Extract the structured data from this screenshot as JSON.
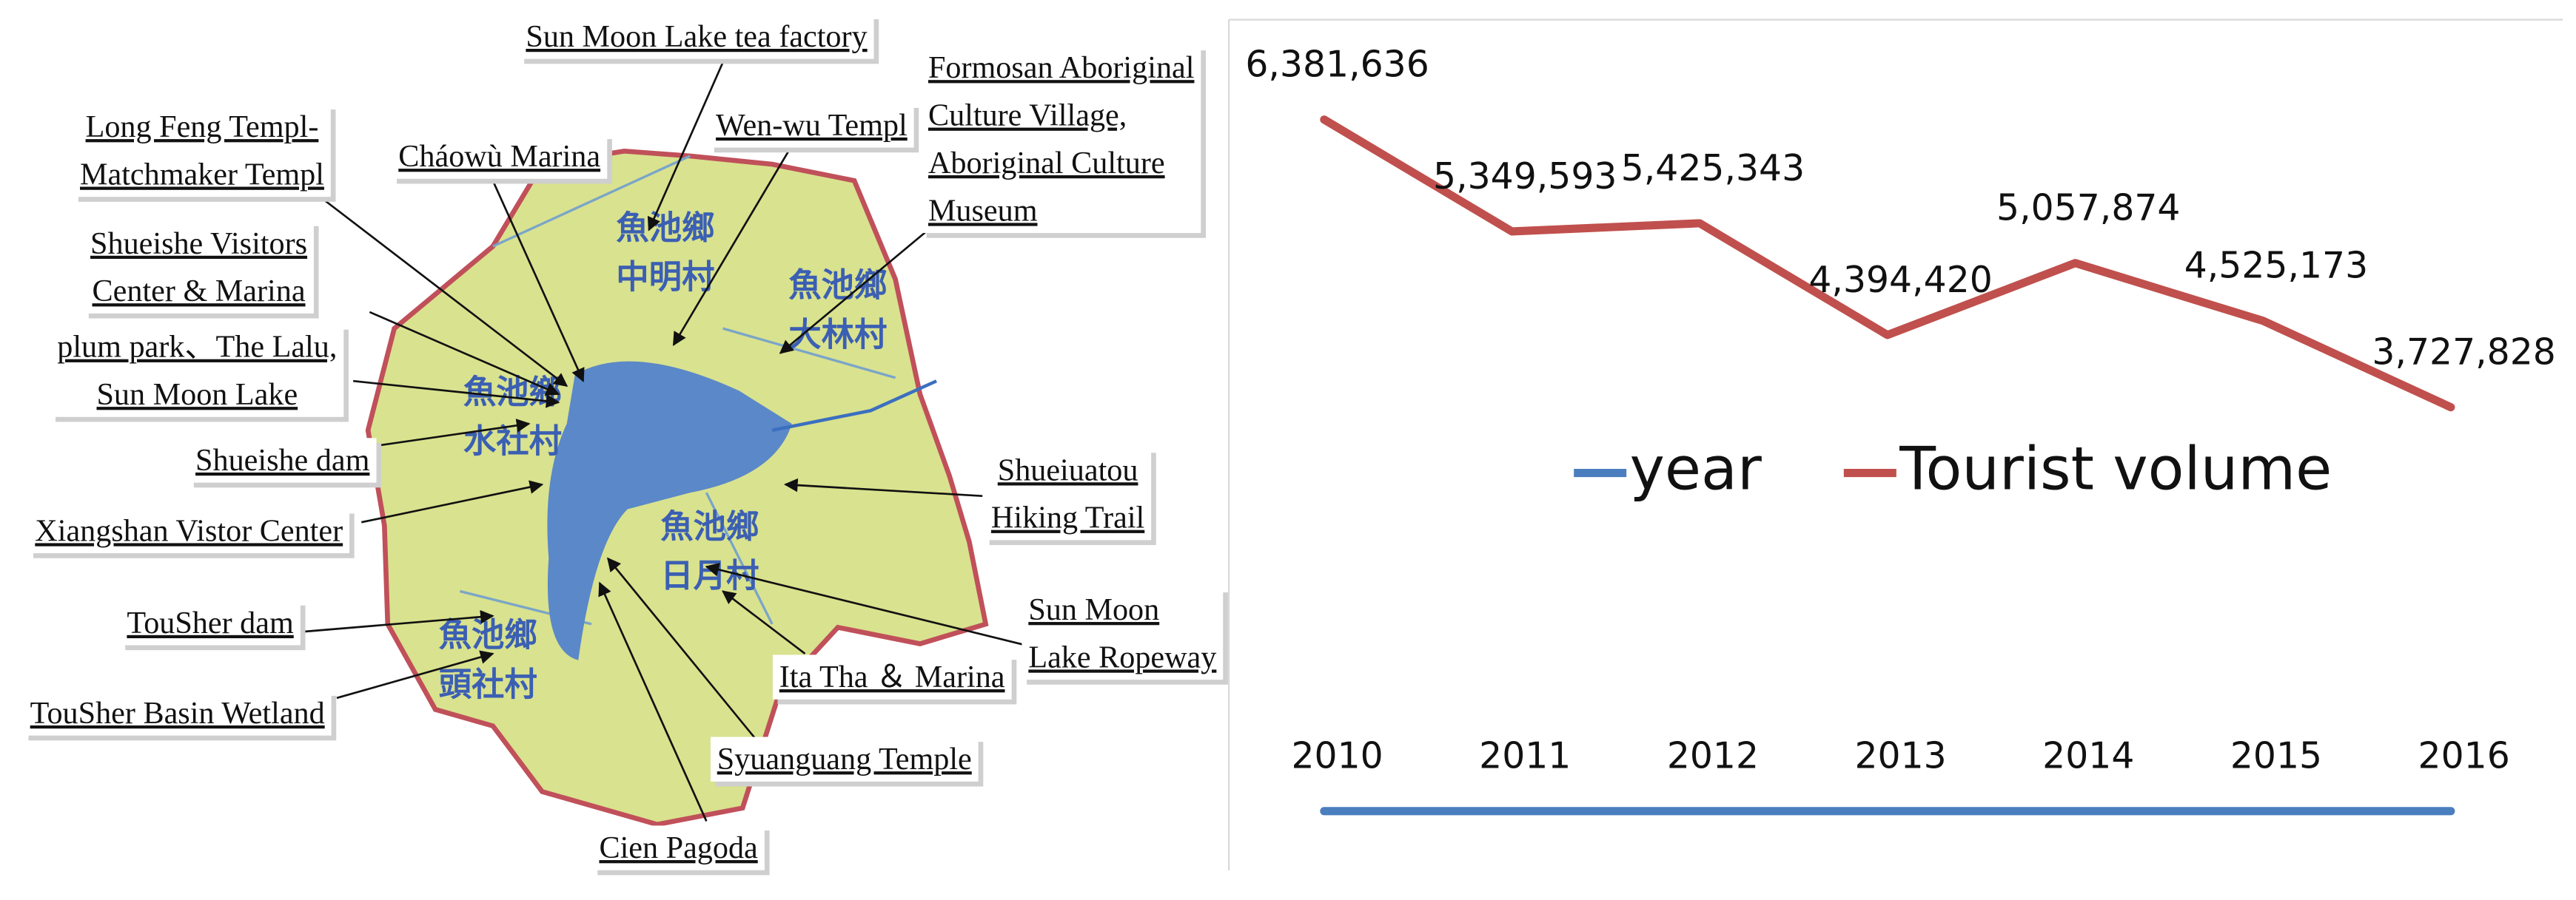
{
  "map": {
    "place_names": [
      [
        "魚池鄉",
        "中明村"
      ],
      [
        "魚池鄉",
        "大林村"
      ],
      [
        "魚池鄉",
        "水社村"
      ],
      [
        "魚池鄉",
        "日月村"
      ],
      [
        "魚池鄉",
        "頭社村"
      ]
    ],
    "labels": [
      {
        "lines": [
          "Sun Moon Lake tea factory"
        ]
      },
      {
        "lines": [
          "Formosan Aboriginal",
          "Culture Village,",
          "Aboriginal Culture",
          "Museum"
        ]
      },
      {
        "lines": [
          "Long Feng Templ-",
          "Matchmaker Templ"
        ]
      },
      {
        "lines": [
          "Wen-wu Templ"
        ]
      },
      {
        "lines": [
          "Cháowù Marina"
        ]
      },
      {
        "lines": [
          "Shueishe Visitors",
          "Center & Marina"
        ]
      },
      {
        "lines": [
          "plum park、The Lalu,",
          "Sun Moon Lake"
        ]
      },
      {
        "lines": [
          "Shueishe dam"
        ]
      },
      {
        "lines": [
          "Xiangshan Vistor Center"
        ]
      },
      {
        "lines": [
          "Shueiuatou",
          "Hiking Trail"
        ]
      },
      {
        "lines": [
          "Sun Moon",
          "Lake Ropeway"
        ]
      },
      {
        "lines": [
          "TouSher dam"
        ]
      },
      {
        "lines": [
          "Ita Tha ＆ Marina"
        ]
      },
      {
        "lines": [
          "TouSher Basin Wetland"
        ]
      },
      {
        "lines": [
          "Syuanguang Temple"
        ]
      },
      {
        "lines": [
          "Cien Pagoda"
        ]
      }
    ]
  },
  "chart_data": {
    "type": "line",
    "categories": [
      null,
      null,
      null,
      null,
      null,
      null,
      null
    ],
    "series": [
      {
        "name": "year",
        "color": "#4a7ebf",
        "values": [
          2010,
          2011,
          2012,
          2013,
          2014,
          2015,
          2016
        ]
      },
      {
        "name": "Tourist volume",
        "color": "#c0504d",
        "values": [
          6381636,
          5349593,
          5425343,
          4394420,
          5057874,
          4525173,
          3727828
        ],
        "value_labels": [
          "6,381,636",
          "5,349,593",
          "5,425,343",
          "4,394,420",
          "5,057,874",
          "4,525,173",
          "3,727,828"
        ]
      }
    ],
    "ylim": [
      0,
      7000000
    ],
    "legend": "center"
  }
}
